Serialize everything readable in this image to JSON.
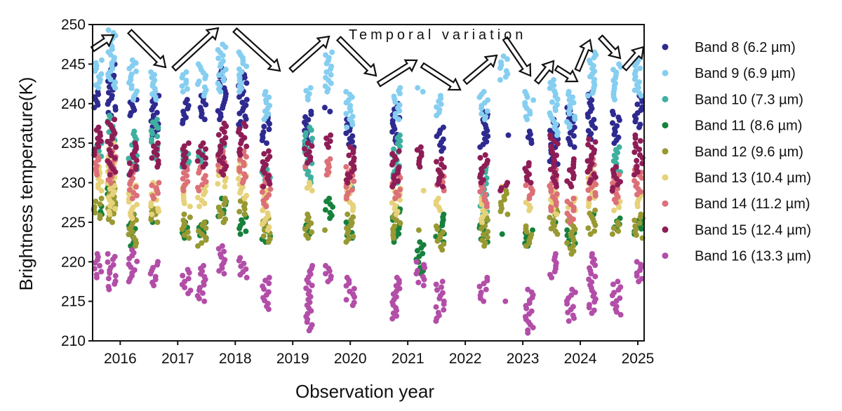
{
  "chart_data": {
    "type": "scatter",
    "xlabel": "Observation year",
    "ylabel": "Brightness temperature(K)",
    "xlim": [
      2015.52,
      2025.11
    ],
    "ylim": [
      210,
      250
    ],
    "xticks": [
      "2016",
      "2017",
      "2018",
      "2019",
      "2020",
      "2021",
      "2022",
      "2023",
      "2024",
      "2025"
    ],
    "yticks": [
      "210",
      "215",
      "220",
      "225",
      "230",
      "235",
      "240",
      "245",
      "250"
    ],
    "grid": false,
    "legend_position": "right-outside",
    "annotation": "Temporal variation",
    "epochs": [
      2015.61,
      2015.85,
      2016.22,
      2016.6,
      2017.15,
      2017.42,
      2017.77,
      2018.13,
      2018.54,
      2019.27,
      2019.63,
      2020.0,
      2020.8,
      2021.22,
      2021.56,
      2022.32,
      2022.68,
      2023.11,
      2023.54,
      2023.84,
      2024.2,
      2024.63,
      2025.01
    ],
    "series": [
      {
        "name": "Band 8 (6.2 µm)",
        "color": "#2e2a8f",
        "ranges": [
          [
            239.5,
            241.5
          ],
          [
            238.5,
            245
          ],
          [
            238.5,
            240.5
          ],
          [
            236,
            241
          ],
          [
            237.5,
            240.5
          ],
          [
            238,
            241
          ],
          [
            238,
            244.5
          ],
          [
            237,
            244
          ],
          [
            235,
            238.5
          ],
          [
            234.5,
            239
          ],
          [
            239,
            239.5
          ],
          [
            234.5,
            238
          ],
          [
            235,
            240
          ],
          null,
          [
            234,
            237
          ],
          [
            234.5,
            239
          ],
          [
            236,
            236
          ],
          [
            235,
            236.5
          ],
          [
            232,
            238
          ],
          [
            234.5,
            239.5
          ],
          [
            235.5,
            241.5
          ],
          [
            235,
            239
          ],
          [
            237,
            241
          ]
        ]
      },
      {
        "name": "Band 9 (6.9 µm)",
        "color": "#86cef0",
        "ranges": [
          [
            242,
            245.5
          ],
          [
            242,
            249.3
          ],
          [
            240.5,
            245.5
          ],
          [
            240.5,
            244
          ],
          [
            241.5,
            244
          ],
          [
            241,
            245
          ],
          [
            241.5,
            247.5
          ],
          [
            241.5,
            246.5
          ],
          [
            238,
            241.5
          ],
          [
            240.5,
            242
          ],
          [
            241.5,
            246.5
          ],
          [
            237,
            241.5
          ],
          [
            238,
            242
          ],
          [
            241.5,
            242
          ],
          [
            238.5,
            241
          ],
          [
            238,
            241.5
          ],
          [
            243,
            246
          ],
          [
            238,
            241.5
          ],
          [
            236,
            243
          ],
          [
            237,
            241.5
          ],
          [
            241,
            246.5
          ],
          [
            240.5,
            245
          ],
          [
            241,
            245.5
          ]
        ]
      },
      {
        "name": "Band 10 (7.3 µm)",
        "color": "#3fb0a0",
        "ranges": [
          [
            233,
            235
          ],
          [
            235,
            238.5
          ],
          [
            231,
            236.5
          ],
          [
            233,
            238
          ],
          [
            232,
            234
          ],
          [
            232,
            234
          ],
          [
            233,
            235
          ],
          [
            234,
            234
          ],
          [
            230,
            232
          ],
          [
            230,
            237
          ],
          null,
          [
            229,
            230
          ],
          [
            230,
            236
          ],
          null,
          [
            231,
            231
          ],
          [
            226,
            232
          ],
          null,
          null,
          null,
          null,
          null,
          [
            231,
            234.5
          ],
          null
        ]
      },
      {
        "name": "Band 11 (8.6 µm)",
        "color": "#16813b",
        "ranges": [
          [
            226,
            227
          ],
          [
            226,
            230
          ],
          [
            222,
            226
          ],
          [
            225,
            225
          ],
          [
            223,
            225
          ],
          [
            223,
            225
          ],
          [
            225,
            228
          ],
          [
            223.5,
            226
          ],
          [
            222.5,
            225
          ],
          [
            223.5,
            225
          ],
          [
            225.5,
            228
          ],
          [
            223,
            225
          ],
          [
            222.5,
            227
          ],
          [
            218.5,
            222.5
          ],
          [
            222.5,
            226
          ],
          [
            222.5,
            225
          ],
          [
            223.5,
            223.5
          ],
          [
            222,
            224
          ],
          [
            225,
            225
          ],
          [
            222,
            224
          ],
          [
            226,
            226
          ],
          [
            224,
            225.5
          ],
          [
            223.5,
            225.5
          ]
        ]
      },
      {
        "name": "Band 12 (9.6 µm)",
        "color": "#999933",
        "ranges": [
          [
            225.5,
            228
          ],
          [
            225,
            230
          ],
          [
            222,
            226
          ],
          [
            225,
            227
          ],
          [
            223,
            226
          ],
          [
            222,
            225
          ],
          [
            225,
            228
          ],
          [
            226,
            228
          ],
          [
            222.5,
            225.5
          ],
          [
            223,
            226
          ],
          [
            224,
            224
          ],
          [
            222.5,
            226
          ],
          [
            223,
            226
          ],
          [
            224,
            224
          ],
          [
            221.5,
            224.5
          ],
          [
            222,
            226
          ],
          [
            226,
            229
          ],
          [
            222,
            224.5
          ],
          [
            223.5,
            227
          ],
          [
            221,
            225.5
          ],
          [
            223.5,
            226.5
          ],
          [
            223.5,
            225
          ],
          [
            223,
            226
          ]
        ]
      },
      {
        "name": "Band 13 (10.4 µm)",
        "color": "#e6d27a",
        "ranges": [
          [
            229,
            232
          ],
          [
            226,
            235
          ],
          [
            225.5,
            230
          ],
          [
            226,
            230
          ],
          [
            227,
            230
          ],
          [
            227,
            230
          ],
          [
            229.5,
            232
          ],
          [
            228,
            233
          ],
          [
            224,
            229
          ],
          [
            229,
            230
          ],
          [
            231,
            231
          ],
          [
            226.5,
            230
          ],
          [
            226,
            230
          ],
          [
            229,
            229
          ],
          [
            226.5,
            228
          ],
          [
            225,
            228
          ],
          [
            229.5,
            229.5
          ],
          [
            226.5,
            227.5
          ],
          [
            226,
            229
          ],
          [
            226.5,
            228
          ],
          [
            227,
            232
          ],
          [
            226.5,
            228
          ],
          [
            227,
            228.5
          ]
        ]
      },
      {
        "name": "Band 14 (11.2 µm)",
        "color": "#dc7078",
        "ranges": [
          [
            231,
            234
          ],
          [
            230,
            234
          ],
          [
            228,
            232
          ],
          [
            228,
            230
          ],
          [
            229,
            232
          ],
          [
            229,
            232
          ],
          [
            231.5,
            234
          ],
          [
            230,
            234
          ],
          [
            227,
            231
          ],
          [
            232,
            232
          ],
          [
            231,
            233
          ],
          [
            228,
            232
          ],
          [
            228,
            231
          ],
          null,
          [
            229,
            231.5
          ],
          [
            227,
            230
          ],
          null,
          [
            228,
            230
          ],
          [
            226.5,
            232
          ],
          [
            225,
            228
          ],
          [
            228,
            233
          ],
          [
            227.5,
            231
          ],
          [
            228.5,
            232
          ]
        ]
      },
      {
        "name": "Band 15 (12.4 µm)",
        "color": "#8e1d56",
        "ranges": [
          [
            233.5,
            237
          ],
          [
            231,
            238
          ],
          [
            231,
            235
          ],
          [
            232,
            235
          ],
          [
            232,
            235
          ],
          [
            232,
            235
          ],
          [
            231,
            237.5
          ],
          [
            233.5,
            237.5
          ],
          [
            229.5,
            234
          ],
          [
            232.5,
            235
          ],
          [
            234.5,
            236
          ],
          [
            230,
            234.5
          ],
          [
            229.5,
            234
          ],
          [
            232,
            234.5
          ],
          [
            229.5,
            233
          ],
          [
            230,
            233.5
          ],
          [
            229,
            230
          ],
          [
            230,
            232.5
          ],
          [
            229.5,
            236
          ],
          [
            229.5,
            233
          ],
          [
            230,
            235.5
          ],
          [
            229,
            232
          ],
          [
            231,
            236
          ]
        ]
      },
      {
        "name": "Band 16 (13.3 µm)",
        "color": "#b24ea8",
        "ranges": [
          [
            218,
            221
          ],
          [
            216.5,
            221
          ],
          [
            217.5,
            221.5
          ],
          [
            217,
            220
          ],
          [
            216,
            219
          ],
          [
            215,
            219.5
          ],
          [
            218.5,
            222
          ],
          [
            218,
            220.5
          ],
          [
            214,
            218
          ],
          [
            211.3,
            219.5
          ],
          [
            217.5,
            219.5
          ],
          [
            214.5,
            218
          ],
          [
            212.8,
            218
          ],
          [
            217,
            220
          ],
          [
            212.5,
            217.5
          ],
          [
            215,
            218
          ],
          [
            215,
            215
          ],
          [
            211,
            216.5
          ],
          [
            218,
            221
          ],
          [
            212.5,
            216.5
          ],
          [
            213.5,
            221
          ],
          [
            213.3,
            217.5
          ],
          [
            217.5,
            220
          ]
        ]
      }
    ]
  }
}
